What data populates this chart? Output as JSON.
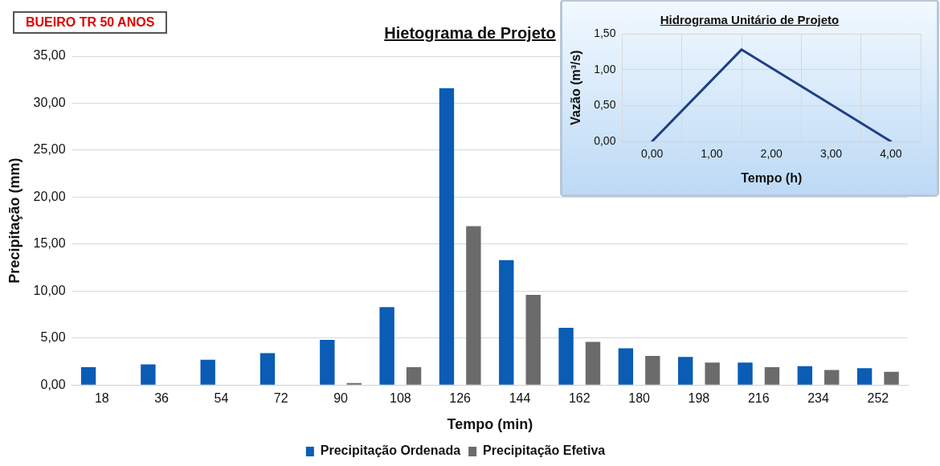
{
  "chart_data": [
    {
      "type": "bar",
      "title": "Hietograma de Projeto",
      "xlabel": "Tempo (min)",
      "ylabel": "Precipitação (mm)",
      "annotations": [
        "BUEIRO TR 50 ANOS"
      ],
      "categories": [
        "18",
        "36",
        "54",
        "72",
        "90",
        "108",
        "126",
        "144",
        "162",
        "180",
        "198",
        "216",
        "234",
        "252"
      ],
      "series": [
        {
          "name": "Precipitação Ordenada",
          "color": "#0a5cb5",
          "values": [
            1.9,
            2.2,
            2.7,
            3.4,
            4.8,
            8.3,
            31.6,
            13.3,
            6.1,
            3.9,
            3.0,
            2.4,
            2.0,
            1.8
          ]
        },
        {
          "name": "Precipitação Efetiva",
          "color": "#6b6b6b",
          "values": [
            0,
            0,
            0,
            0,
            0.2,
            1.9,
            16.9,
            9.6,
            4.6,
            3.1,
            2.4,
            1.9,
            1.6,
            1.4
          ]
        }
      ],
      "ylim": [
        0,
        35
      ],
      "yticks": [
        {
          "value": 0,
          "label": "0,00"
        },
        {
          "value": 5,
          "label": "5,00"
        },
        {
          "value": 10,
          "label": "10,00"
        },
        {
          "value": 15,
          "label": "15,00"
        },
        {
          "value": 20,
          "label": "20,00"
        },
        {
          "value": 25,
          "label": "25,00"
        },
        {
          "value": 30,
          "label": "30,00"
        },
        {
          "value": 35,
          "label": "35,00"
        }
      ],
      "grid": "y",
      "legend": "bottom"
    },
    {
      "type": "line",
      "title": "Hidrograma Unitário de Projeto",
      "xlabel": "Tempo (h)",
      "ylabel": "Vazão (m³/s)",
      "x": [
        0,
        1.5,
        4
      ],
      "series": [
        {
          "color": "#1f3f86",
          "values": [
            0,
            1.28,
            0
          ]
        }
      ],
      "xlim": [
        0,
        4
      ],
      "xticks": [
        {
          "value": 0,
          "label": "0,00"
        },
        {
          "value": 1,
          "label": "1,00"
        },
        {
          "value": 2,
          "label": "2,00"
        },
        {
          "value": 3,
          "label": "3,00"
        },
        {
          "value": 4,
          "label": "4,00"
        }
      ],
      "ylim": [
        0,
        1.5
      ],
      "yticks": [
        {
          "value": 0,
          "label": "0,00"
        },
        {
          "value": 0.5,
          "label": "0,50"
        },
        {
          "value": 1,
          "label": "1,00"
        },
        {
          "value": 1.5,
          "label": "1,50"
        }
      ],
      "grid": true,
      "marker": "none",
      "line_style": "solid"
    }
  ]
}
